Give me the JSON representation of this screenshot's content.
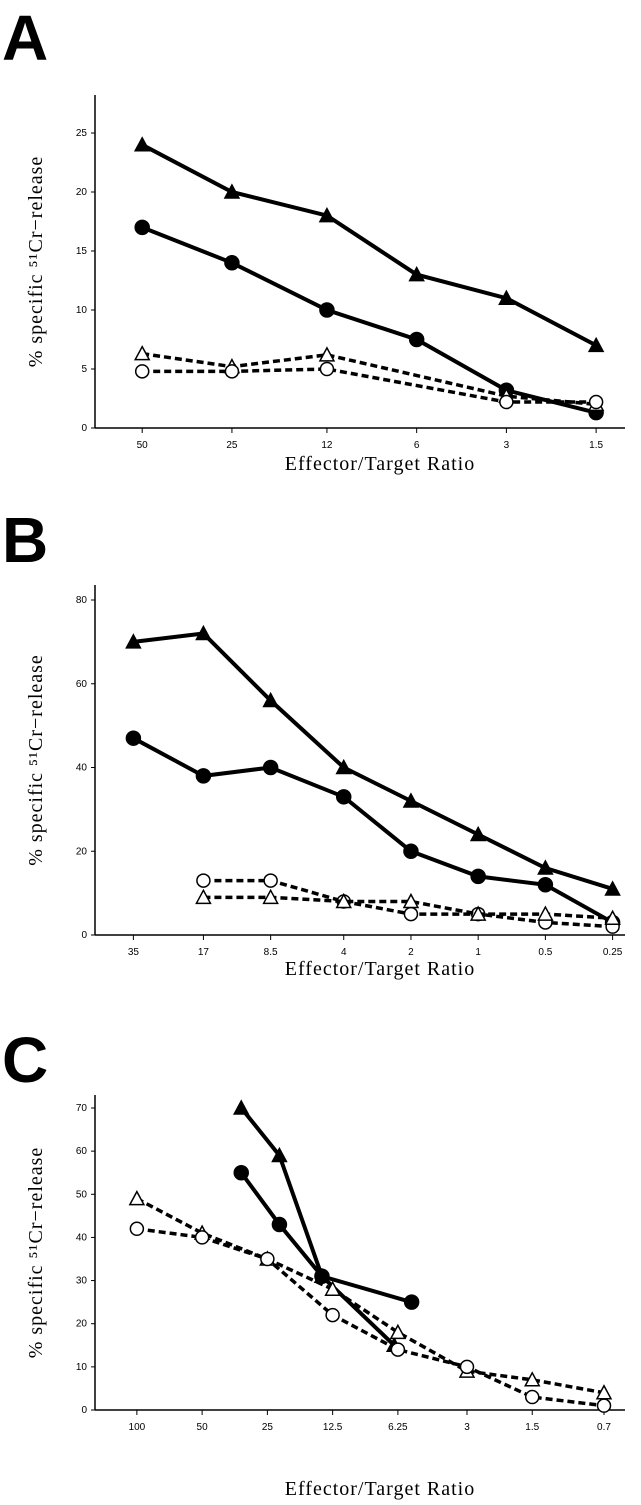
{
  "chart_data": [
    {
      "type": "line",
      "panel_label": "A",
      "xlabel": "Effector/Target Ratio",
      "ylabel": "% specific ⁵¹Cr−release",
      "xscale": "log",
      "xlim": [
        72,
        1.2
      ],
      "xticks": [
        50,
        25,
        12,
        6,
        3,
        1.5
      ],
      "ylim": [
        0,
        25
      ],
      "yticks": [
        0,
        5,
        10,
        15,
        20,
        25
      ],
      "x": [
        50,
        25,
        12,
        6,
        3,
        1.5
      ],
      "series": [
        {
          "color": "#000",
          "marker": "triangle",
          "filled": true,
          "dashed": false,
          "values": [
            24,
            20,
            18,
            13,
            11,
            7
          ]
        },
        {
          "color": "#000",
          "marker": "circle",
          "filled": true,
          "dashed": false,
          "values": [
            17,
            14,
            10,
            7.5,
            3.2,
            1.3
          ]
        },
        {
          "color": "#000",
          "marker": "triangle",
          "filled": false,
          "dashed": true,
          "x": [
            50,
            25,
            12,
            3,
            1.5
          ],
          "values": [
            6.3,
            5.2,
            6.2,
            2.7,
            2
          ]
        },
        {
          "color": "#000",
          "marker": "circle",
          "filled": false,
          "dashed": true,
          "x": [
            50,
            25,
            12,
            3,
            1.5
          ],
          "values": [
            4.8,
            4.8,
            5,
            2.2,
            2.2
          ]
        }
      ]
    },
    {
      "type": "line",
      "panel_label": "B",
      "xlabel": "Effector/Target Ratio",
      "ylabel": "% specific ⁵¹Cr−release",
      "xscale": "log",
      "xlim": [
        52,
        0.22
      ],
      "xticks": [
        35,
        17,
        8.5,
        4,
        2,
        1,
        0.5,
        0.25
      ],
      "ylim": [
        0,
        80
      ],
      "yticks": [
        0,
        20,
        40,
        60,
        80
      ],
      "x": [
        35,
        17,
        8.5,
        4,
        2,
        1,
        0.5,
        0.25
      ],
      "series": [
        {
          "color": "#000",
          "marker": "triangle",
          "filled": true,
          "dashed": false,
          "values": [
            70,
            72,
            56,
            40,
            32,
            24,
            16,
            11
          ]
        },
        {
          "color": "#000",
          "marker": "circle",
          "filled": true,
          "dashed": false,
          "values": [
            47,
            38,
            40,
            33,
            20,
            14,
            12,
            3
          ]
        },
        {
          "color": "#000",
          "marker": "circle",
          "filled": false,
          "dashed": true,
          "x": [
            17,
            8.5,
            4,
            2,
            1,
            0.5,
            0.25
          ],
          "values": [
            13,
            13,
            8,
            5,
            5,
            3,
            2
          ]
        },
        {
          "color": "#000",
          "marker": "triangle",
          "filled": false,
          "dashed": true,
          "x": [
            17,
            8.5,
            4,
            2,
            1,
            0.5,
            0.25
          ],
          "values": [
            9,
            9,
            8,
            8,
            5,
            5,
            4
          ]
        }
      ]
    },
    {
      "type": "line",
      "panel_label": "C",
      "xlabel": "Effector/Target Ratio",
      "ylabel": "% specific ⁵¹Cr−release",
      "xscale": "log",
      "xlim": [
        156,
        0.56
      ],
      "xticks": [
        100,
        50,
        25,
        12.5,
        6.25,
        3,
        1.5,
        0.7
      ],
      "ylim": [
        0,
        70
      ],
      "yticks": [
        0,
        10,
        20,
        30,
        40,
        50,
        60,
        70
      ],
      "x": [
        100,
        50,
        25,
        12.5,
        6.25,
        3,
        1.5,
        0.7
      ],
      "series": [
        {
          "color": "#000",
          "marker": "triangle",
          "filled": true,
          "dashed": false,
          "x": [
            33,
            22,
            14,
            6.5
          ],
          "values": [
            70,
            59,
            31,
            15
          ]
        },
        {
          "color": "#000",
          "marker": "circle",
          "filled": true,
          "dashed": false,
          "x": [
            33,
            22,
            14,
            5.4
          ],
          "values": [
            55,
            43,
            31,
            25
          ]
        },
        {
          "color": "#000",
          "marker": "triangle",
          "filled": false,
          "dashed": true,
          "values": [
            49,
            41,
            35,
            28,
            18,
            9,
            7,
            4
          ]
        },
        {
          "color": "#000",
          "marker": "circle",
          "filled": false,
          "dashed": true,
          "values": [
            42,
            40,
            35,
            22,
            14,
            10,
            3,
            1
          ]
        }
      ]
    }
  ]
}
